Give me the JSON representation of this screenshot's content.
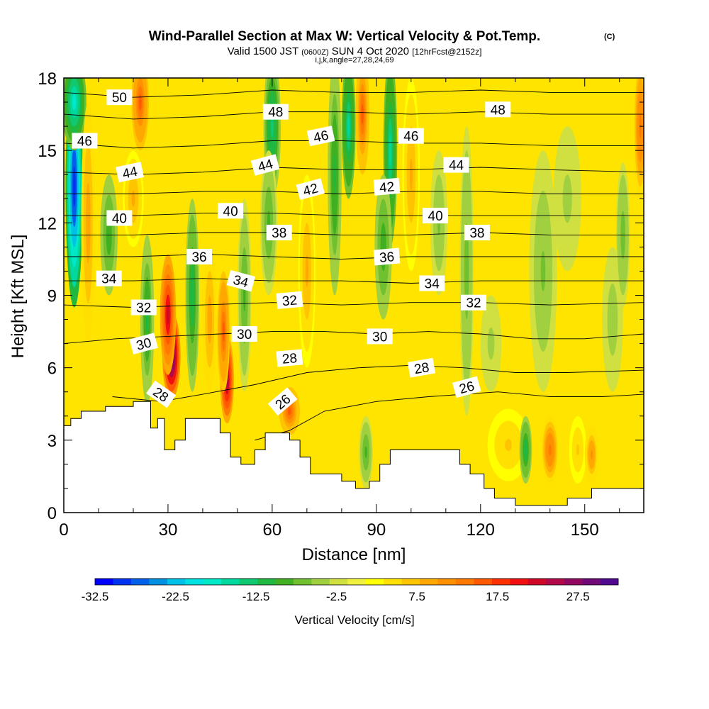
{
  "chart_data": {
    "type": "heatmap",
    "title": "Wind-Parallel Section at Max W: Vertical Velocity & Pot.Temp.",
    "title_mark": "(C)",
    "subtitle": {
      "valid_label": "Valid 1500 JST",
      "utc_time": "(0600Z)",
      "date": "SUN 4 Oct 2020",
      "forecast_info": "[12hrFcst@2152z]"
    },
    "indices_line": "i,j,k,angle=27,28,24,69",
    "xlabel": "Distance [nm]",
    "ylabel": "Height [Kft MSL]",
    "xlim": [
      0,
      167
    ],
    "ylim": [
      0,
      18
    ],
    "x_ticks": [
      "0",
      "30",
      "60",
      "90",
      "120",
      "150"
    ],
    "y_ticks": [
      "0",
      "3",
      "6",
      "9",
      "12",
      "15",
      "18"
    ],
    "colorbar": {
      "label": "Vertical Velocity [cm/s]",
      "min": -32.5,
      "max": 32.5,
      "step": 2.5,
      "tick_labels": [
        "-32.5",
        "-22.5",
        "-12.5",
        "-2.5",
        "7.5",
        "17.5",
        "27.5"
      ],
      "colors": [
        "#0000ff",
        "#0033f0",
        "#0060e8",
        "#0090e0",
        "#00c0e8",
        "#00e0e0",
        "#00e8c8",
        "#00d8a0",
        "#10c870",
        "#20b840",
        "#40b020",
        "#70c030",
        "#a0d040",
        "#d0e040",
        "#f0f040",
        "#ffff00",
        "#ffe000",
        "#ffc400",
        "#ffa800",
        "#ff9000",
        "#ff7800",
        "#ff5a00",
        "#ff3000",
        "#f01010",
        "#d00828",
        "#b00848",
        "#900860",
        "#700878",
        "#500890"
      ]
    },
    "base_color": "#ffe400",
    "terrain": [
      [
        0,
        3.6
      ],
      [
        2,
        3.6
      ],
      [
        2,
        3.9
      ],
      [
        5,
        3.9
      ],
      [
        5,
        4.2
      ],
      [
        12,
        4.2
      ],
      [
        12,
        4.4
      ],
      [
        20,
        4.4
      ],
      [
        20,
        4.6
      ],
      [
        25,
        4.6
      ],
      [
        25,
        3.5
      ],
      [
        27,
        3.5
      ],
      [
        27,
        3.9
      ],
      [
        29,
        3.9
      ],
      [
        29,
        2.6
      ],
      [
        32,
        2.6
      ],
      [
        32,
        3.0
      ],
      [
        35,
        3.0
      ],
      [
        35,
        3.9
      ],
      [
        45,
        3.9
      ],
      [
        45,
        3.3
      ],
      [
        48,
        3.3
      ],
      [
        48,
        2.3
      ],
      [
        51,
        2.3
      ],
      [
        51,
        2.0
      ],
      [
        55,
        2.0
      ],
      [
        55,
        2.6
      ],
      [
        58,
        2.6
      ],
      [
        58,
        3.3
      ],
      [
        65,
        3.3
      ],
      [
        65,
        3.0
      ],
      [
        68,
        3.0
      ],
      [
        68,
        2.3
      ],
      [
        71,
        2.3
      ],
      [
        71,
        1.6
      ],
      [
        80,
        1.6
      ],
      [
        80,
        1.3
      ],
      [
        84,
        1.3
      ],
      [
        84,
        1.0
      ],
      [
        88,
        1.0
      ],
      [
        88,
        1.3
      ],
      [
        91,
        1.3
      ],
      [
        91,
        2.0
      ],
      [
        94,
        2.0
      ],
      [
        94,
        2.6
      ],
      [
        114,
        2.6
      ],
      [
        114,
        2.0
      ],
      [
        117,
        2.0
      ],
      [
        117,
        1.6
      ],
      [
        121,
        1.6
      ],
      [
        121,
        1.0
      ],
      [
        124,
        1.0
      ],
      [
        124,
        0.6
      ],
      [
        130,
        0.6
      ],
      [
        130,
        0.3
      ],
      [
        145,
        0.3
      ],
      [
        145,
        0.6
      ],
      [
        152,
        0.6
      ],
      [
        152,
        1.0
      ],
      [
        167,
        1.0
      ]
    ],
    "w_features": [
      {
        "x": 3,
        "z": 13.5,
        "sx": 2.5,
        "sz": 5.0,
        "w": -30
      },
      {
        "x": 3,
        "z": 17.0,
        "sx": 3.5,
        "sz": 2.0,
        "w": -18
      },
      {
        "x": 7,
        "z": 12.0,
        "sx": 2.0,
        "sz": 5.0,
        "w": 10
      },
      {
        "x": 13,
        "z": 11.5,
        "sx": 2.5,
        "sz": 2.5,
        "w": -9
      },
      {
        "x": 22,
        "z": 17.0,
        "sx": 2.5,
        "sz": 2.0,
        "w": 16
      },
      {
        "x": 24,
        "z": 8.0,
        "sx": 2.0,
        "sz": 3.5,
        "w": -11
      },
      {
        "x": 31,
        "z": 6.5,
        "sx": 2.6,
        "sz": 1.8,
        "w": 32
      },
      {
        "x": 30,
        "z": 8.2,
        "sx": 2.3,
        "sz": 2.5,
        "w": 22
      },
      {
        "x": 37,
        "z": 9.0,
        "sx": 2.0,
        "sz": 4.0,
        "w": -12
      },
      {
        "x": 42,
        "z": 8.0,
        "sx": 2.0,
        "sz": 3.0,
        "w": 10
      },
      {
        "x": 47,
        "z": 5.5,
        "sx": 2.0,
        "sz": 1.8,
        "w": 25
      },
      {
        "x": 46,
        "z": 7.5,
        "sx": 1.8,
        "sz": 2.5,
        "w": 16
      },
      {
        "x": 52,
        "z": 9.0,
        "sx": 2.0,
        "sz": 4.0,
        "w": -8
      },
      {
        "x": 60,
        "z": 16.0,
        "sx": 2.5,
        "sz": 3.0,
        "w": -14
      },
      {
        "x": 59,
        "z": 12.0,
        "sx": 2.5,
        "sz": 3.0,
        "w": -8
      },
      {
        "x": 65,
        "z": 4.2,
        "sx": 3.0,
        "sz": 1.0,
        "w": 15
      },
      {
        "x": 70,
        "z": 10.0,
        "sx": 2.5,
        "sz": 4.0,
        "w": 8
      },
      {
        "x": 78,
        "z": 14.0,
        "sx": 2.0,
        "sz": 5.0,
        "w": -11
      },
      {
        "x": 82,
        "z": 16.0,
        "sx": 2.0,
        "sz": 3.0,
        "w": -16
      },
      {
        "x": 86,
        "z": 16.5,
        "sx": 2.0,
        "sz": 2.5,
        "w": 15
      },
      {
        "x": 87,
        "z": 2.5,
        "sx": 2.0,
        "sz": 1.5,
        "w": -8
      },
      {
        "x": 94,
        "z": 15.0,
        "sx": 2.0,
        "sz": 4.0,
        "w": -16
      },
      {
        "x": 92,
        "z": 11.0,
        "sx": 2.5,
        "sz": 3.0,
        "w": -9
      },
      {
        "x": 100,
        "z": 14.0,
        "sx": 2.5,
        "sz": 4.0,
        "w": 8
      },
      {
        "x": 108,
        "z": 12.0,
        "sx": 2.5,
        "sz": 3.0,
        "w": -6
      },
      {
        "x": 116,
        "z": 10.0,
        "sx": 2.0,
        "sz": 6.0,
        "w": -7
      },
      {
        "x": 123,
        "z": 7.0,
        "sx": 3.0,
        "sz": 2.0,
        "w": -4
      },
      {
        "x": 128,
        "z": 2.8,
        "sx": 6.0,
        "sz": 1.5,
        "w": 6
      },
      {
        "x": 133,
        "z": 2.6,
        "sx": 1.8,
        "sz": 1.4,
        "w": -12
      },
      {
        "x": 140,
        "z": 2.6,
        "sx": 2.5,
        "sz": 1.4,
        "w": 14
      },
      {
        "x": 148,
        "z": 2.6,
        "sx": 2.5,
        "sz": 1.4,
        "w": 6
      },
      {
        "x": 152,
        "z": 2.4,
        "sx": 2.0,
        "sz": 1.2,
        "w": 11
      },
      {
        "x": 138,
        "z": 10.0,
        "sx": 4.0,
        "sz": 5.0,
        "w": -6
      },
      {
        "x": 145,
        "z": 13.0,
        "sx": 4.0,
        "sz": 3.0,
        "w": -4
      },
      {
        "x": 158,
        "z": 8.0,
        "sx": 3.0,
        "sz": 3.0,
        "w": -5
      },
      {
        "x": 161,
        "z": 11.5,
        "sx": 2.0,
        "sz": 3.0,
        "w": -7
      },
      {
        "x": 166,
        "z": 16.0,
        "sx": 2.0,
        "sz": 3.0,
        "w": 14
      },
      {
        "x": 20,
        "z": 13.0,
        "sx": 3.0,
        "sz": 2.0,
        "w": 8
      }
    ],
    "theta_contour_labels": [
      {
        "text": "50",
        "x": 16,
        "z": 17.2,
        "angle": 0
      },
      {
        "text": "46",
        "x": 6,
        "z": 15.4,
        "angle": 0
      },
      {
        "text": "44",
        "x": 19,
        "z": 14.1,
        "angle": -12
      },
      {
        "text": "40",
        "x": 16,
        "z": 12.2,
        "angle": 0
      },
      {
        "text": "34",
        "x": 13,
        "z": 9.7,
        "angle": 0
      },
      {
        "text": "32",
        "x": 23,
        "z": 8.5,
        "angle": 0
      },
      {
        "text": "30",
        "x": 23,
        "z": 7.0,
        "angle": -15
      },
      {
        "text": "28",
        "x": 28,
        "z": 4.9,
        "angle": 35
      },
      {
        "text": "48",
        "x": 61,
        "z": 16.6,
        "angle": 0
      },
      {
        "text": "44",
        "x": 58,
        "z": 14.4,
        "angle": -15
      },
      {
        "text": "40",
        "x": 48,
        "z": 12.5,
        "angle": 0
      },
      {
        "text": "36",
        "x": 39,
        "z": 10.6,
        "angle": 0
      },
      {
        "text": "34",
        "x": 51,
        "z": 9.6,
        "angle": 15
      },
      {
        "text": "30",
        "x": 52,
        "z": 7.4,
        "angle": 0
      },
      {
        "text": "38",
        "x": 62,
        "z": 11.6,
        "angle": 0
      },
      {
        "text": "46",
        "x": 74,
        "z": 15.6,
        "angle": -12
      },
      {
        "text": "42",
        "x": 71,
        "z": 13.4,
        "angle": -15
      },
      {
        "text": "32",
        "x": 65,
        "z": 8.8,
        "angle": -5
      },
      {
        "text": "28",
        "x": 65,
        "z": 6.4,
        "angle": -5
      },
      {
        "text": "26",
        "x": 63,
        "z": 4.6,
        "angle": -40
      },
      {
        "text": "46",
        "x": 100,
        "z": 15.6,
        "angle": 0
      },
      {
        "text": "42",
        "x": 93,
        "z": 13.5,
        "angle": -5
      },
      {
        "text": "36",
        "x": 93,
        "z": 10.6,
        "angle": -5
      },
      {
        "text": "30",
        "x": 91,
        "z": 7.3,
        "angle": 0
      },
      {
        "text": "40",
        "x": 107,
        "z": 12.3,
        "angle": 0
      },
      {
        "text": "34",
        "x": 106,
        "z": 9.5,
        "angle": 0
      },
      {
        "text": "28",
        "x": 103,
        "z": 6.0,
        "angle": -10
      },
      {
        "text": "48",
        "x": 125,
        "z": 16.7,
        "angle": 0
      },
      {
        "text": "44",
        "x": 113,
        "z": 14.4,
        "angle": 0
      },
      {
        "text": "38",
        "x": 119,
        "z": 11.6,
        "angle": 0
      },
      {
        "text": "32",
        "x": 118,
        "z": 8.7,
        "angle": 0
      },
      {
        "text": "26",
        "x": 116,
        "z": 5.2,
        "angle": -15
      }
    ],
    "theta_contours": [
      {
        "value": 26,
        "points": [
          [
            55,
            3.0
          ],
          [
            65,
            3.4
          ],
          [
            75,
            4.2
          ],
          [
            90,
            4.6
          ],
          [
            105,
            4.8
          ],
          [
            115,
            4.9
          ],
          [
            125,
            5.0
          ],
          [
            140,
            4.8
          ],
          [
            155,
            4.8
          ],
          [
            167,
            4.9
          ]
        ]
      },
      {
        "value": 28,
        "points": [
          [
            14,
            4.8
          ],
          [
            28,
            4.6
          ],
          [
            40,
            4.9
          ],
          [
            55,
            5.3
          ],
          [
            70,
            5.8
          ],
          [
            85,
            6.0
          ],
          [
            100,
            6.1
          ],
          [
            115,
            6.0
          ],
          [
            130,
            5.8
          ],
          [
            145,
            5.8
          ],
          [
            167,
            5.9
          ]
        ]
      },
      {
        "value": 30,
        "points": [
          [
            0,
            7.0
          ],
          [
            15,
            7.2
          ],
          [
            30,
            7.3
          ],
          [
            45,
            7.4
          ],
          [
            60,
            7.5
          ],
          [
            75,
            7.5
          ],
          [
            90,
            7.4
          ],
          [
            105,
            7.5
          ],
          [
            120,
            7.4
          ],
          [
            135,
            7.2
          ],
          [
            150,
            7.2
          ],
          [
            167,
            7.4
          ]
        ]
      },
      {
        "value": 32,
        "points": [
          [
            0,
            8.6
          ],
          [
            20,
            8.5
          ],
          [
            40,
            8.6
          ],
          [
            60,
            8.7
          ],
          [
            80,
            8.6
          ],
          [
            100,
            8.7
          ],
          [
            120,
            8.7
          ],
          [
            140,
            8.6
          ],
          [
            167,
            8.7
          ]
        ]
      },
      {
        "value": 34,
        "points": [
          [
            0,
            9.6
          ],
          [
            20,
            9.6
          ],
          [
            40,
            9.7
          ],
          [
            60,
            9.6
          ],
          [
            80,
            9.6
          ],
          [
            100,
            9.5
          ],
          [
            120,
            9.6
          ],
          [
            140,
            9.6
          ],
          [
            167,
            9.6
          ]
        ]
      },
      {
        "value": 36,
        "points": [
          [
            0,
            10.6
          ],
          [
            20,
            10.6
          ],
          [
            40,
            10.7
          ],
          [
            60,
            10.6
          ],
          [
            80,
            10.5
          ],
          [
            100,
            10.6
          ],
          [
            120,
            10.6
          ],
          [
            140,
            10.6
          ],
          [
            167,
            10.6
          ]
        ]
      },
      {
        "value": 38,
        "points": [
          [
            0,
            11.5
          ],
          [
            20,
            11.5
          ],
          [
            40,
            11.6
          ],
          [
            60,
            11.6
          ],
          [
            80,
            11.5
          ],
          [
            100,
            11.5
          ],
          [
            120,
            11.6
          ],
          [
            140,
            11.5
          ],
          [
            167,
            11.5
          ]
        ]
      },
      {
        "value": 40,
        "points": [
          [
            0,
            12.3
          ],
          [
            20,
            12.3
          ],
          [
            40,
            12.4
          ],
          [
            60,
            12.4
          ],
          [
            80,
            12.3
          ],
          [
            100,
            12.3
          ],
          [
            120,
            12.3
          ],
          [
            140,
            12.3
          ],
          [
            167,
            12.3
          ]
        ]
      },
      {
        "value": 42,
        "points": [
          [
            0,
            13.2
          ],
          [
            20,
            13.2
          ],
          [
            40,
            13.3
          ],
          [
            60,
            13.3
          ],
          [
            80,
            13.2
          ],
          [
            100,
            13.3
          ],
          [
            120,
            13.3
          ],
          [
            140,
            13.2
          ],
          [
            167,
            13.2
          ]
        ]
      },
      {
        "value": 44,
        "points": [
          [
            0,
            14.1
          ],
          [
            20,
            14.0
          ],
          [
            40,
            14.1
          ],
          [
            60,
            14.3
          ],
          [
            80,
            14.2
          ],
          [
            100,
            14.2
          ],
          [
            120,
            14.3
          ],
          [
            140,
            14.2
          ],
          [
            167,
            14.1
          ]
        ]
      },
      {
        "value": 46,
        "points": [
          [
            0,
            15.3
          ],
          [
            20,
            15.1
          ],
          [
            40,
            15.2
          ],
          [
            60,
            15.4
          ],
          [
            80,
            15.4
          ],
          [
            100,
            15.3
          ],
          [
            120,
            15.3
          ],
          [
            140,
            15.2
          ],
          [
            167,
            15.2
          ]
        ]
      },
      {
        "value": 48,
        "points": [
          [
            0,
            16.5
          ],
          [
            20,
            16.3
          ],
          [
            40,
            16.4
          ],
          [
            60,
            16.6
          ],
          [
            80,
            16.6
          ],
          [
            100,
            16.5
          ],
          [
            120,
            16.6
          ],
          [
            140,
            16.5
          ],
          [
            167,
            16.5
          ]
        ]
      },
      {
        "value": 50,
        "points": [
          [
            0,
            17.4
          ],
          [
            20,
            17.2
          ],
          [
            40,
            17.3
          ],
          [
            60,
            17.5
          ],
          [
            80,
            17.4
          ],
          [
            100,
            17.4
          ],
          [
            120,
            17.5
          ],
          [
            140,
            17.4
          ],
          [
            167,
            17.4
          ]
        ]
      }
    ]
  }
}
